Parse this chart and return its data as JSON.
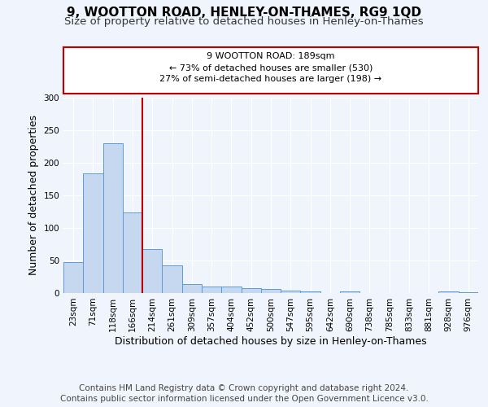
{
  "title1": "9, WOOTTON ROAD, HENLEY-ON-THAMES, RG9 1QD",
  "title2": "Size of property relative to detached houses in Henley-on-Thames",
  "xlabel": "Distribution of detached houses by size in Henley-on-Thames",
  "ylabel": "Number of detached properties",
  "categories": [
    "23sqm",
    "71sqm",
    "118sqm",
    "166sqm",
    "214sqm",
    "261sqm",
    "309sqm",
    "357sqm",
    "404sqm",
    "452sqm",
    "500sqm",
    "547sqm",
    "595sqm",
    "642sqm",
    "690sqm",
    "738sqm",
    "785sqm",
    "833sqm",
    "881sqm",
    "928sqm",
    "976sqm"
  ],
  "values": [
    47,
    184,
    230,
    124,
    68,
    42,
    14,
    10,
    10,
    8,
    6,
    4,
    2,
    0,
    3,
    0,
    0,
    0,
    0,
    2,
    1
  ],
  "bar_color": "#c5d8f0",
  "bar_edge_color": "#5b9bd5",
  "vline_x": 3.5,
  "vline_color": "#c00000",
  "annotation_text": "9 WOOTTON ROAD: 189sqm\n← 73% of detached houses are smaller (530)\n27% of semi-detached houses are larger (198) →",
  "annotation_box_color": "#ffffff",
  "annotation_box_edge": "#c00000",
  "ylim": [
    0,
    300
  ],
  "yticks": [
    0,
    50,
    100,
    150,
    200,
    250,
    300
  ],
  "footer1": "Contains HM Land Registry data © Crown copyright and database right 2024.",
  "footer2": "Contains public sector information licensed under the Open Government Licence v3.0.",
  "bg_color": "#f0f4fc",
  "plot_bg_color": "#f0f4fc",
  "title1_fontsize": 11,
  "title2_fontsize": 9.5,
  "xlabel_fontsize": 9,
  "ylabel_fontsize": 9,
  "tick_fontsize": 7.5,
  "footer_fontsize": 7.5
}
